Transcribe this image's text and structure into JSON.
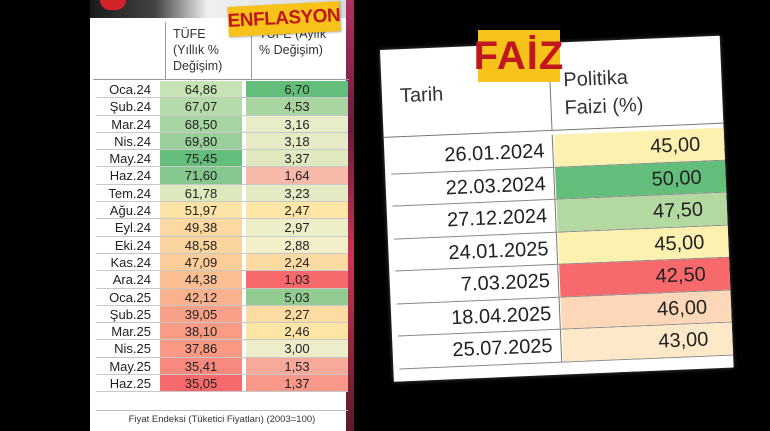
{
  "inflation": {
    "label": "ENFLASYON",
    "headers": {
      "yillik_line1": "TÜFE",
      "yillik_line2": "(Yıllık %",
      "yillik_line3": "Değişim)",
      "aylik_line1": "TÜFE (Aylık",
      "aylik_line2": "% Değişim)"
    },
    "rows": [
      {
        "month": "Oca.24",
        "yillik": "64,86",
        "aylik": "6,70",
        "yillik_color": "#c7e2b4",
        "aylik_color": "#63be7b"
      },
      {
        "month": "Şub.24",
        "yillik": "67,07",
        "aylik": "4,53",
        "yillik_color": "#b5dbab",
        "aylik_color": "#a9d5a0"
      },
      {
        "month": "Mar.24",
        "yillik": "68,50",
        "aylik": "3,16",
        "yillik_color": "#a6d5a2",
        "aylik_color": "#e9ecc8"
      },
      {
        "month": "Nis.24",
        "yillik": "69,80",
        "aylik": "3,18",
        "yillik_color": "#98cf9a",
        "aylik_color": "#e7ebc5"
      },
      {
        "month": "May.24",
        "yillik": "75,45",
        "aylik": "3,37",
        "yillik_color": "#63be7b",
        "aylik_color": "#dfe8bf"
      },
      {
        "month": "Haz.24",
        "yillik": "71,60",
        "aylik": "1,64",
        "yillik_color": "#85c78f",
        "aylik_color": "#f7b9a8"
      },
      {
        "month": "Tem.24",
        "yillik": "61,78",
        "aylik": "3,23",
        "yillik_color": "#dde9bd",
        "aylik_color": "#e5eac4"
      },
      {
        "month": "Ağu.24",
        "yillik": "51,97",
        "aylik": "2,47",
        "yillik_color": "#fde3a5",
        "aylik_color": "#fde6a6"
      },
      {
        "month": "Eyl.24",
        "yillik": "49,38",
        "aylik": "2,97",
        "yillik_color": "#fdd8a0",
        "aylik_color": "#eeeec9"
      },
      {
        "month": "Eki.24",
        "yillik": "48,58",
        "aylik": "2,88",
        "yillik_color": "#fcd49d",
        "aylik_color": "#f3efca"
      },
      {
        "month": "Kas.24",
        "yillik": "47,09",
        "aylik": "2,24",
        "yillik_color": "#fccd99",
        "aylik_color": "#fcdaa2"
      },
      {
        "month": "Ara.24",
        "yillik": "44,38",
        "aylik": "1,03",
        "yillik_color": "#fbbf93",
        "aylik_color": "#f8696b"
      },
      {
        "month": "Oca.25",
        "yillik": "42,12",
        "aylik": "5,03",
        "yillik_color": "#fab28e",
        "aylik_color": "#93cc93"
      },
      {
        "month": "Şub.25",
        "yillik": "39,05",
        "aylik": "2,27",
        "yillik_color": "#f9a188",
        "aylik_color": "#fcdca3"
      },
      {
        "month": "Mar.25",
        "yillik": "38,10",
        "aylik": "2,46",
        "yillik_color": "#f99b85",
        "aylik_color": "#fde5a6"
      },
      {
        "month": "Nis.25",
        "yillik": "37,86",
        "aylik": "3,00",
        "yillik_color": "#f99984",
        "aylik_color": "#edeec9"
      },
      {
        "month": "May.25",
        "yillik": "35,41",
        "aylik": "1,53",
        "yillik_color": "#f8897e",
        "aylik_color": "#f8aa9a"
      },
      {
        "month": "Haz.25",
        "yillik": "35,05",
        "aylik": "1,37",
        "yillik_color": "#f8696b",
        "aylik_color": "#f89888"
      }
    ],
    "footnote": "Fiyat Endeksi (Tüketici Fiyatları) (2003=100)"
  },
  "interest": {
    "label": "FAİZ",
    "headers": {
      "tarih": "Tarih",
      "politika_line1": "Politika",
      "politika_line2": "Faizi  (%)"
    },
    "rows": [
      {
        "date": "26.01.2024",
        "rate": "45,00",
        "color": "#fdf1b0"
      },
      {
        "date": "22.03.2024",
        "rate": "50,00",
        "color": "#63be7b"
      },
      {
        "date": "27.12.2024",
        "rate": "47,50",
        "color": "#b4d9a0"
      },
      {
        "date": "24.01.2025",
        "rate": "45,00",
        "color": "#fdf1b0"
      },
      {
        "date": "7.03.2025",
        "rate": "42,50",
        "color": "#f8696b"
      },
      {
        "date": "18.04.2025",
        "rate": "46,00",
        "color": "#fcd7b8"
      },
      {
        "date": "25.07.2025",
        "rate": "43,00",
        "color": "#fde9c8"
      }
    ]
  }
}
